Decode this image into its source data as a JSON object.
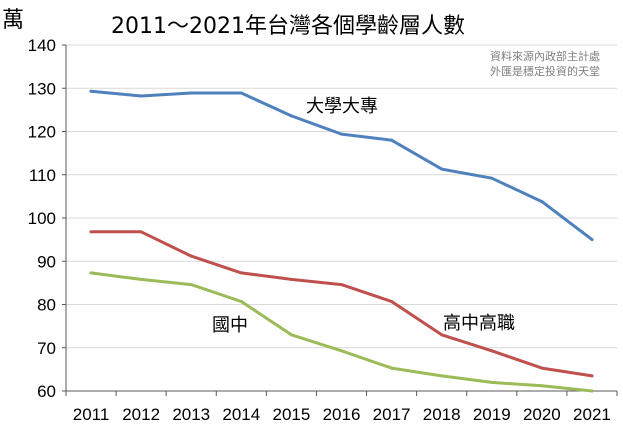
{
  "chart_data": {
    "type": "line",
    "title": "2011～2021年台灣各個學齡層人數",
    "unit_label": "萬",
    "source_lines": [
      "資料來源內政部主計處",
      "外匯是穩定投資的天堂"
    ],
    "x": [
      "2011",
      "2012",
      "2013",
      "2014",
      "2015",
      "2016",
      "2017",
      "2018",
      "2019",
      "2020",
      "2021"
    ],
    "ylim": [
      60,
      140
    ],
    "yticks": [
      "60",
      "70",
      "80",
      "90",
      "100",
      "110",
      "120",
      "130",
      "140"
    ],
    "grid": true,
    "series": [
      {
        "name": "大學大專",
        "color": "#4f81bd",
        "values": [
          129.3,
          128.2,
          128.9,
          128.9,
          123.6,
          119.4,
          118.0,
          111.3,
          109.2,
          103.8,
          95.0
        ]
      },
      {
        "name": "高中高職",
        "color": "#c0504d",
        "values": [
          96.8,
          96.8,
          91.2,
          87.3,
          85.8,
          84.6,
          80.7,
          73.0,
          69.3,
          65.3,
          63.5
        ]
      },
      {
        "name": "國中",
        "color": "#9bbb59",
        "values": [
          87.3,
          85.8,
          84.6,
          80.7,
          73.0,
          69.3,
          65.3,
          63.5,
          62.0,
          61.2,
          60.0
        ]
      }
    ]
  }
}
